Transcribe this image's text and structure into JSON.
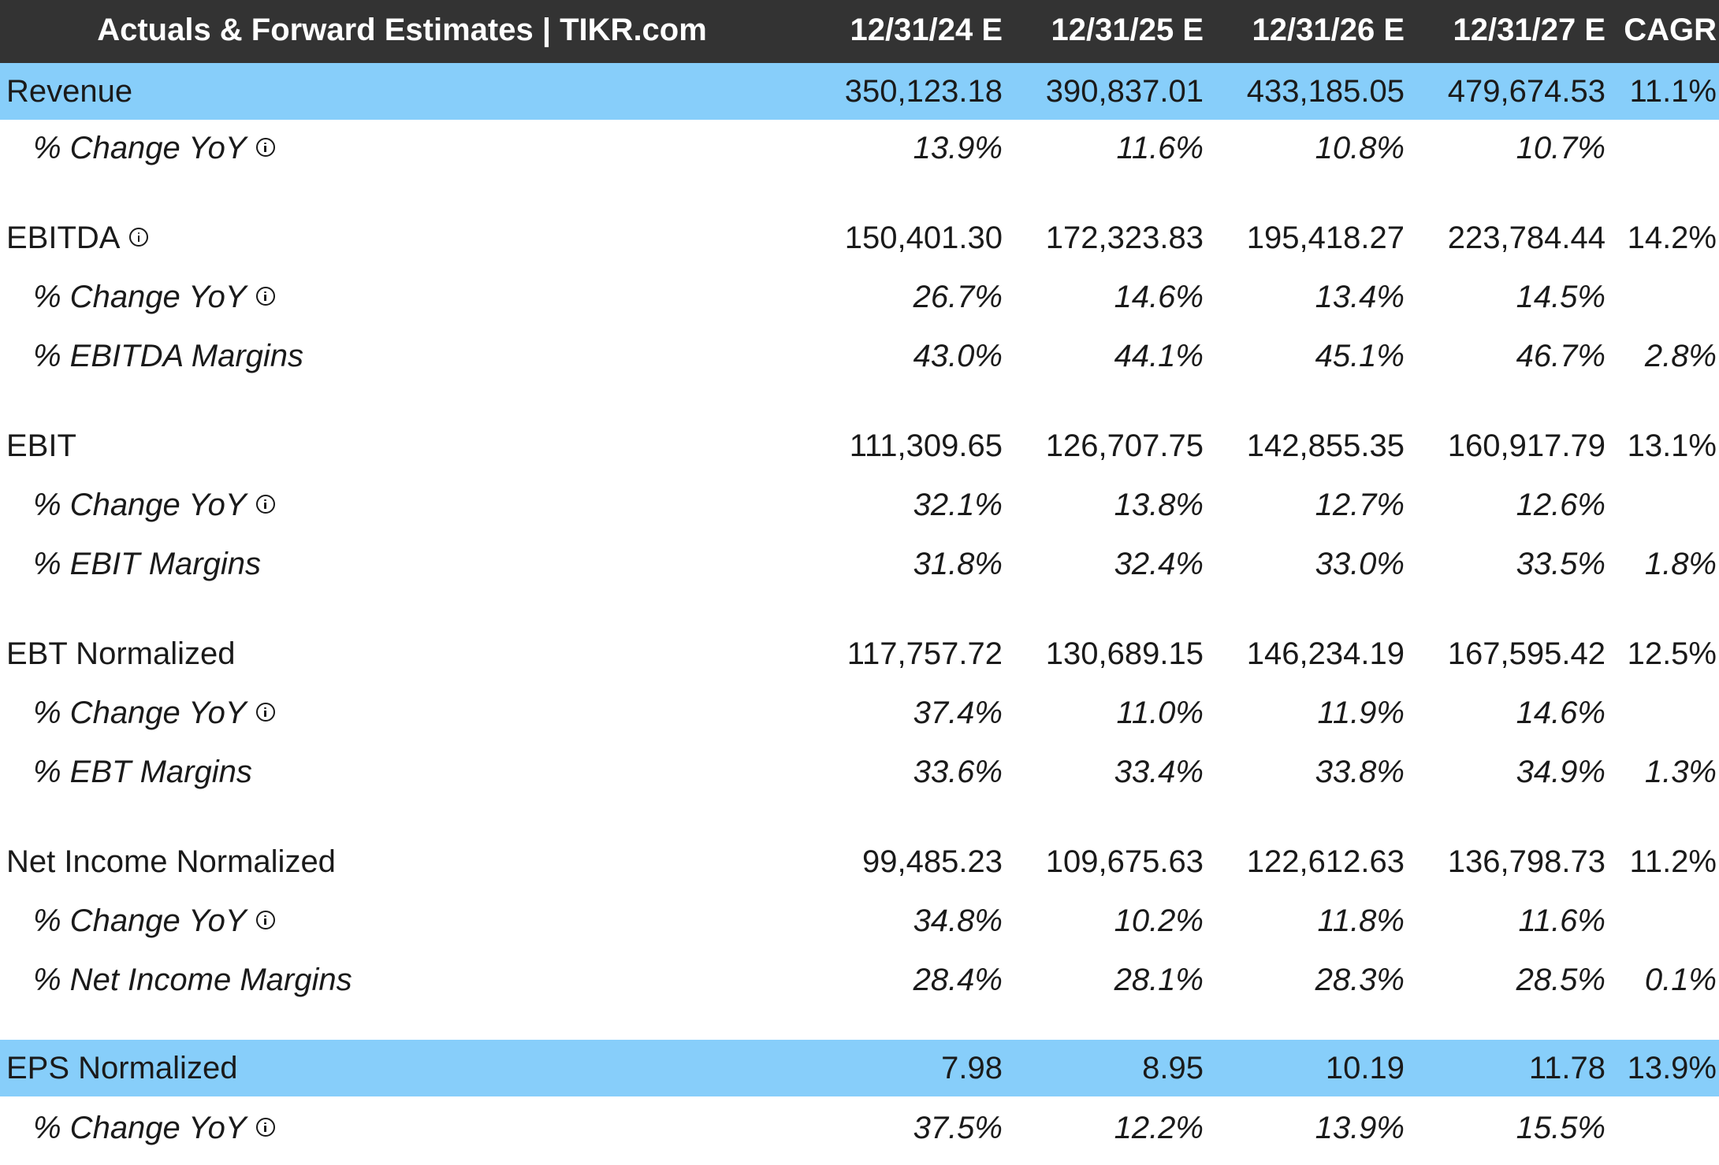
{
  "header": {
    "title": "Actuals & Forward Estimates | TIKR.com",
    "columns": [
      "12/31/24 E",
      "12/31/25 E",
      "12/31/26 E",
      "12/31/27 E",
      "CAGR"
    ]
  },
  "rows": [
    {
      "label": "Revenue",
      "values": [
        "350,123.18",
        "390,837.01",
        "433,185.05",
        "479,674.53",
        "11.1%"
      ]
    },
    {
      "label": "% Change YoY",
      "values": [
        "13.9%",
        "11.6%",
        "10.8%",
        "10.7%",
        ""
      ]
    },
    {
      "label": "EBITDA",
      "values": [
        "150,401.30",
        "172,323.83",
        "195,418.27",
        "223,784.44",
        "14.2%"
      ]
    },
    {
      "label": "% Change YoY",
      "values": [
        "26.7%",
        "14.6%",
        "13.4%",
        "14.5%",
        ""
      ]
    },
    {
      "label": "% EBITDA Margins",
      "values": [
        "43.0%",
        "44.1%",
        "45.1%",
        "46.7%",
        "2.8%"
      ]
    },
    {
      "label": "EBIT",
      "values": [
        "111,309.65",
        "126,707.75",
        "142,855.35",
        "160,917.79",
        "13.1%"
      ]
    },
    {
      "label": "% Change YoY",
      "values": [
        "32.1%",
        "13.8%",
        "12.7%",
        "12.6%",
        ""
      ]
    },
    {
      "label": "% EBIT Margins",
      "values": [
        "31.8%",
        "32.4%",
        "33.0%",
        "33.5%",
        "1.8%"
      ]
    },
    {
      "label": "EBT Normalized",
      "values": [
        "117,757.72",
        "130,689.15",
        "146,234.19",
        "167,595.42",
        "12.5%"
      ]
    },
    {
      "label": "% Change YoY",
      "values": [
        "37.4%",
        "11.0%",
        "11.9%",
        "14.6%",
        ""
      ]
    },
    {
      "label": "% EBT Margins",
      "values": [
        "33.6%",
        "33.4%",
        "33.8%",
        "34.9%",
        "1.3%"
      ]
    },
    {
      "label": "Net Income Normalized",
      "values": [
        "99,485.23",
        "109,675.63",
        "122,612.63",
        "136,798.73",
        "11.2%"
      ]
    },
    {
      "label": "% Change YoY",
      "values": [
        "34.8%",
        "10.2%",
        "11.8%",
        "11.6%",
        ""
      ]
    },
    {
      "label": "% Net Income Margins",
      "values": [
        "28.4%",
        "28.1%",
        "28.3%",
        "28.5%",
        "0.1%"
      ]
    },
    {
      "label": "EPS Normalized",
      "values": [
        "7.98",
        "8.95",
        "10.19",
        "11.78",
        "13.9%"
      ]
    },
    {
      "label": "% Change YoY",
      "values": [
        "37.5%",
        "12.2%",
        "13.9%",
        "15.5%",
        ""
      ]
    }
  ],
  "colors": {
    "header_bg": "#333333",
    "header_text": "#ffffff",
    "highlight_bg": "#87cefa"
  },
  "icons": {
    "info": "info-circle-icon"
  }
}
